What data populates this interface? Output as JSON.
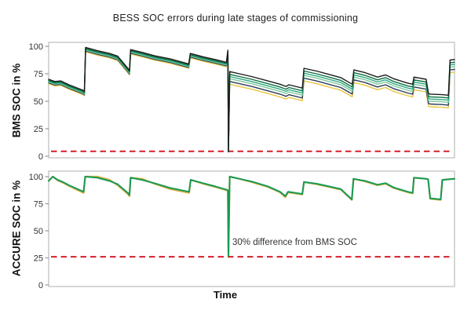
{
  "title": "BESS SOC errors during late stages of commissioning",
  "xlabel": "Time",
  "style": {
    "frame_color": "#bcbcbc",
    "tick_color": "#9a9a9a",
    "tick_label_color": "#333333",
    "threshold_color": "#d41f2c",
    "background": "#ffffff"
  },
  "chart_data": [
    {
      "id": "bms",
      "type": "line",
      "ylabel": "BMS SOC in %",
      "xlabel": "",
      "ylim": [
        -3,
        104
      ],
      "yticks": [
        0,
        25,
        50,
        75,
        100
      ],
      "grid": false,
      "legend": "none",
      "threshold": {
        "value": 4.5,
        "color": "#d41f2c",
        "style": "dashed"
      },
      "x": [
        0,
        1.5,
        3,
        5,
        8.5,
        8.8,
        9.1,
        12,
        15,
        17,
        19.5,
        19.9,
        20.2,
        23,
        26,
        30,
        34.5,
        34.9,
        38,
        41,
        43.8,
        44.15,
        44.3,
        44.6,
        47,
        50,
        54,
        57,
        58.5,
        59.2,
        62.5,
        62.9,
        66,
        69,
        72,
        74.8,
        75.2,
        78,
        81,
        83,
        85,
        88.5,
        89.7,
        90,
        93,
        93.6,
        94,
        97,
        98.5,
        98.9,
        100
      ],
      "series": [
        {
          "name": "yellow",
          "color": "#e9c53e",
          "width": 1.4,
          "values": [
            66,
            64,
            64.5,
            61,
            56,
            55,
            95,
            92,
            89.5,
            87,
            76,
            74,
            93,
            90.5,
            87.5,
            84.5,
            80,
            89.5,
            86.5,
            84,
            81.5,
            92.5,
            4,
            65.5,
            63.5,
            61,
            57,
            54,
            52,
            53.5,
            50.5,
            68.5,
            66,
            63,
            60,
            54,
            67,
            64.5,
            60.5,
            62.5,
            59,
            55,
            54,
            60.5,
            58.5,
            45.5,
            45,
            44.5,
            44,
            76,
            76.5
          ]
        },
        {
          "name": "dark-navy",
          "color": "#2d3a55",
          "width": 1.4,
          "values": [
            66.8,
            64.8,
            65.3,
            61.8,
            56.8,
            55.8,
            95.8,
            92.8,
            90.3,
            87.8,
            76.8,
            74.8,
            93.8,
            91.3,
            88.3,
            85.3,
            80.8,
            90.3,
            87.3,
            84.8,
            82.3,
            93.3,
            4,
            68,
            66,
            63.5,
            59.5,
            56.5,
            54.5,
            56,
            53,
            71,
            68.5,
            65.5,
            62.5,
            56.5,
            69.5,
            67,
            63,
            65,
            61.5,
            57.5,
            56.5,
            63,
            61,
            48,
            47.5,
            47,
            46.5,
            78.5,
            79
          ]
        },
        {
          "name": "light-green",
          "color": "#7cc79a",
          "width": 1.4,
          "values": [
            67.5,
            65.5,
            66,
            62.5,
            57.5,
            56.5,
            96.5,
            93.5,
            91,
            88.5,
            77.5,
            75.5,
            94.5,
            92,
            89,
            86,
            81.5,
            91,
            88,
            85.5,
            83,
            94,
            4,
            70.5,
            68.5,
            66,
            62,
            59,
            57,
            58.5,
            55.5,
            73.5,
            71,
            68,
            65,
            59,
            72,
            69.5,
            65.5,
            67.5,
            64,
            60,
            59,
            65.5,
            63.5,
            50.5,
            50,
            49.5,
            49,
            81,
            81.5
          ]
        },
        {
          "name": "teal",
          "color": "#2da884",
          "width": 1.4,
          "values": [
            68.2,
            66.2,
            66.7,
            63.2,
            58.2,
            57.2,
            97.2,
            94.2,
            91.7,
            89.2,
            78.2,
            76.2,
            95.2,
            92.7,
            89.7,
            86.7,
            82.2,
            91.7,
            88.7,
            86.2,
            83.7,
            94.7,
            4,
            72.5,
            70.5,
            68,
            64,
            61,
            59,
            60.5,
            57.5,
            75.5,
            73,
            70,
            67,
            61,
            74,
            71.5,
            67.5,
            69.5,
            66,
            62,
            61,
            67.5,
            65.5,
            52.5,
            52,
            51.5,
            51,
            83,
            83.5
          ]
        },
        {
          "name": "dark-green",
          "color": "#0e6f3e",
          "width": 1.4,
          "values": [
            69,
            67,
            67.5,
            64,
            59,
            58,
            98,
            95,
            92.5,
            90,
            79,
            77,
            96,
            93.5,
            90.5,
            87.5,
            83,
            92.5,
            89.5,
            87,
            84.5,
            95.5,
            4,
            74.5,
            72.5,
            70,
            66,
            63,
            61,
            62.5,
            59.5,
            77.5,
            75,
            72,
            69,
            63,
            76,
            73.5,
            69.5,
            71.5,
            68,
            64,
            63,
            69.5,
            67.5,
            54.5,
            54,
            53.5,
            53,
            85,
            85.5
          ]
        },
        {
          "name": "black",
          "color": "#1c1c1c",
          "width": 1.4,
          "values": [
            70,
            68,
            68.5,
            65,
            60,
            59,
            99,
            96,
            93.5,
            91,
            80,
            78,
            97,
            94.5,
            91.5,
            88.5,
            84,
            93.5,
            90.5,
            88,
            85.5,
            96.5,
            4,
            77,
            75,
            72.5,
            68.5,
            65.5,
            63.5,
            65,
            62,
            80,
            77.5,
            74.5,
            71.5,
            65.5,
            78.5,
            76,
            72,
            74,
            70.5,
            66.5,
            65.5,
            72,
            70,
            57,
            56.5,
            56,
            55.5,
            87.5,
            88
          ]
        }
      ]
    },
    {
      "id": "accure",
      "type": "line",
      "ylabel": "ACCURE SOC in %",
      "xlabel": "Time",
      "ylim": [
        -3,
        104
      ],
      "yticks": [
        0,
        25,
        50,
        75,
        100
      ],
      "grid": false,
      "legend": "none",
      "annotation": "30% difference from BMS SOC",
      "threshold": {
        "value": 26,
        "color": "#d41f2c",
        "style": "dashed"
      },
      "x": [
        0,
        1,
        2.2,
        3.5,
        5,
        8.6,
        9,
        12,
        15,
        17,
        19.5,
        19.9,
        20.2,
        23,
        26,
        30,
        34.6,
        35,
        38,
        41,
        43.8,
        44.15,
        44.3,
        44.6,
        47,
        50,
        54,
        57,
        58.3,
        59,
        62.5,
        62.9,
        66,
        69,
        72,
        74.7,
        75.1,
        78,
        81,
        83,
        85,
        88.5,
        89.7,
        90,
        93,
        93.5,
        94,
        96.6,
        97,
        100
      ],
      "series": [
        {
          "name": "yellow",
          "color": "#e0ae3f",
          "width": 2.2,
          "values": [
            96,
            100,
            96.5,
            94.5,
            91.5,
            85,
            100,
            100,
            97,
            92,
            84,
            82,
            99,
            98,
            93.5,
            88.5,
            85,
            97,
            93.5,
            90.5,
            87.5,
            87,
            27,
            100,
            98,
            95,
            90.5,
            85.5,
            81,
            85.5,
            83.5,
            95,
            93,
            90.5,
            88,
            78.5,
            98,
            95.5,
            92,
            93.5,
            89.5,
            85.5,
            84.5,
            99,
            98,
            97.5,
            79.5,
            78.5,
            97,
            98
          ]
        },
        {
          "name": "green",
          "color": "#169a56",
          "width": 2,
          "values": [
            96,
            100,
            97,
            95,
            92,
            86,
            100,
            99,
            96,
            93,
            85,
            83,
            99,
            97,
            94,
            89.5,
            86,
            97,
            94,
            91,
            88,
            87.5,
            27,
            100,
            98,
            95.5,
            91,
            86,
            82,
            86,
            84,
            95,
            93.5,
            91,
            88.5,
            79,
            98,
            96,
            92.5,
            94,
            90,
            86,
            85,
            99,
            98,
            97.5,
            80,
            79,
            97,
            98
          ]
        }
      ]
    }
  ]
}
